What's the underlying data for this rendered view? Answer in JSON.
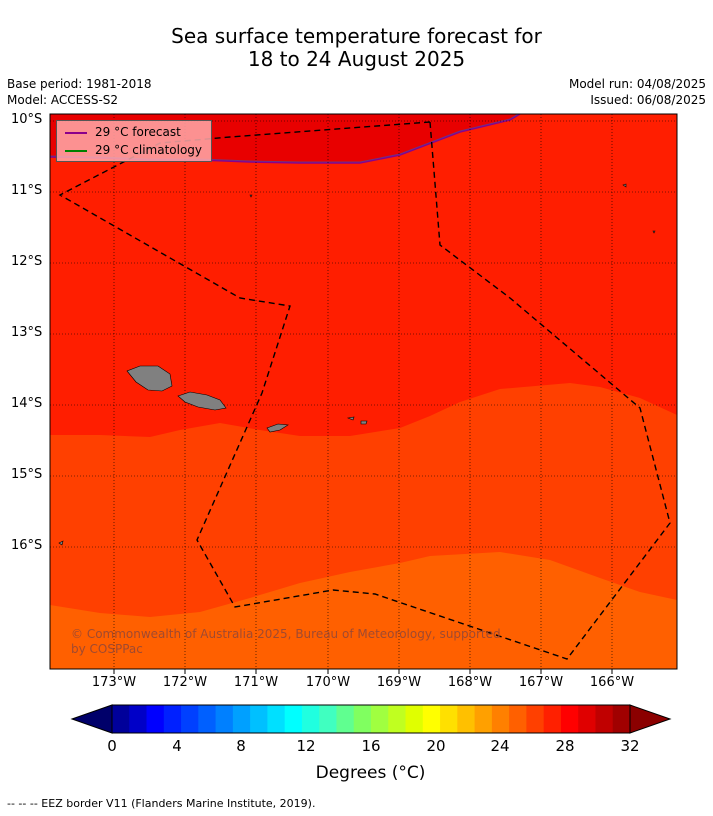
{
  "title": {
    "line1": "Sea surface temperature forecast for",
    "line2": "18 to 24 August 2025"
  },
  "meta": {
    "base_period": "Base period: 1981-2018",
    "model": "Model: ACCESS-S2",
    "model_run": "Model run: 04/08/2025",
    "issued": "Issued: 06/08/2025"
  },
  "legend": {
    "forecast_label": "29 °C  forecast",
    "climatology_label": "29 °C  climatology",
    "forecast_color": "#8b008b",
    "climatology_color": "#008000"
  },
  "axes": {
    "lat_labels": [
      "10°S",
      "11°S",
      "12°S",
      "13°S",
      "14°S",
      "15°S",
      "16°S"
    ],
    "lon_labels": [
      "173°W",
      "172°W",
      "171°W",
      "170°W",
      "169°W",
      "168°W",
      "167°W",
      "166°W"
    ]
  },
  "colors": {
    "sst_29_30": "#e80000",
    "sst_28_29": "#ff1e00",
    "sst_27_28": "#ff4000",
    "sst_26_27": "#ff6000",
    "land": "#808080"
  },
  "colorbar": {
    "tick_labels": [
      "0",
      "4",
      "8",
      "12",
      "16",
      "20",
      "24",
      "28",
      "32"
    ],
    "unit_label": "Degrees (°C)",
    "colors": [
      "#00009a",
      "#0000c8",
      "#0000ff",
      "#0020ff",
      "#0040ff",
      "#0060ff",
      "#0080ff",
      "#00a0ff",
      "#00c0ff",
      "#00e0ff",
      "#00ffff",
      "#20ffe0",
      "#40ffc0",
      "#60ff90",
      "#80ff60",
      "#a0ff40",
      "#c0ff20",
      "#e0ff00",
      "#ffff00",
      "#ffe000",
      "#ffc000",
      "#ffa000",
      "#ff8000",
      "#ff6000",
      "#ff4000",
      "#ff2000",
      "#ff0000",
      "#e00000",
      "#c00000",
      "#a00000"
    ]
  },
  "copyright": "© Commonwealth of Australia 2025, Bureau of Meteorology, supported by COSPPac",
  "footer": "--  --  -- EEZ border V11 (Flanders Marine Institute, 2019)."
}
